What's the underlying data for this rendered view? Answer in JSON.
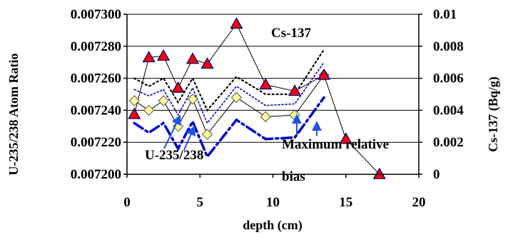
{
  "chart_data": {
    "type": "line",
    "xlabel": "depth (cm)",
    "ylabel": "U-235/238 Atom Ratio",
    "y2label": "Cs-137 (Bq/g)",
    "xlim": [
      0,
      20
    ],
    "ylim": [
      0.0072,
      0.0073
    ],
    "y2lim": [
      0,
      0.01
    ],
    "x_ticks": [
      "0",
      "5",
      "10",
      "15",
      "20"
    ],
    "y_ticks": [
      "0.007200",
      "0.007220",
      "0.007240",
      "0.007260",
      "0.007280",
      "0.007300"
    ],
    "y2_ticks": [
      "0",
      "0.002",
      "0.004",
      "0.006",
      "0.008",
      "0.01"
    ],
    "grid": "horizontal",
    "series": [
      {
        "name": "U-235/238",
        "axis": "left",
        "marker": "diamond",
        "color": "#ffff99",
        "x": [
          0.5,
          1.5,
          2.5,
          3.5,
          4.5,
          5.5,
          7.5,
          9.5,
          11.5,
          13.5
        ],
        "y": [
          0.007246,
          0.00724,
          0.007246,
          0.00723,
          0.007247,
          0.007225,
          0.007248,
          0.007236,
          0.007237,
          0.007262
        ]
      },
      {
        "name": "Cs-137",
        "axis": "right",
        "marker": "triangle",
        "color": "#ff0000",
        "x": [
          0.5,
          1.5,
          2.5,
          3.5,
          4.5,
          5.5,
          7.5,
          9.5,
          11.5,
          13.5,
          15,
          17.3
        ],
        "y": [
          0.00375,
          0.0073,
          0.0074,
          0.0054,
          0.0072,
          0.0069,
          0.0094,
          0.0056,
          0.0052,
          0.0062,
          0.0022,
          0
        ]
      }
    ],
    "bounds": [
      {
        "style": "dotted",
        "color": "#000000",
        "x": [
          0.5,
          1.5,
          2.5,
          3.5,
          4.5,
          5.5,
          7.5,
          9.5,
          11.5,
          13.5
        ],
        "y": [
          0.00726,
          0.007255,
          0.00726,
          0.007245,
          0.00726,
          0.00724,
          0.007261,
          0.00725,
          0.00725,
          0.007278
        ]
      },
      {
        "style": "dash-dot",
        "color": "#0000cc",
        "x": [
          0.5,
          1.5,
          2.5,
          3.5,
          4.5,
          5.5,
          7.5,
          9.5,
          11.5,
          13.5
        ],
        "y": [
          0.007232,
          0.007226,
          0.007232,
          0.007216,
          0.007233,
          0.007211,
          0.007234,
          0.007222,
          0.007223,
          0.007248
        ]
      },
      {
        "style": "dotted",
        "color": "#0000cc",
        "x": [
          0.5,
          1.5,
          2.5,
          3.5,
          4.5,
          5.5,
          7.5,
          9.5,
          11.5,
          13.5
        ],
        "y": [
          0.007253,
          0.007249,
          0.007253,
          0.007237,
          0.007254,
          0.007232,
          0.007255,
          0.007243,
          0.007244,
          0.00727
        ]
      }
    ],
    "annotations": [
      {
        "text": "Cs-137",
        "arrow": false
      },
      {
        "text": "U-235/238",
        "arrow": true
      },
      {
        "text": "Maximum relative",
        "arrow": true
      },
      {
        "text": "bias",
        "arrow": false
      }
    ]
  }
}
